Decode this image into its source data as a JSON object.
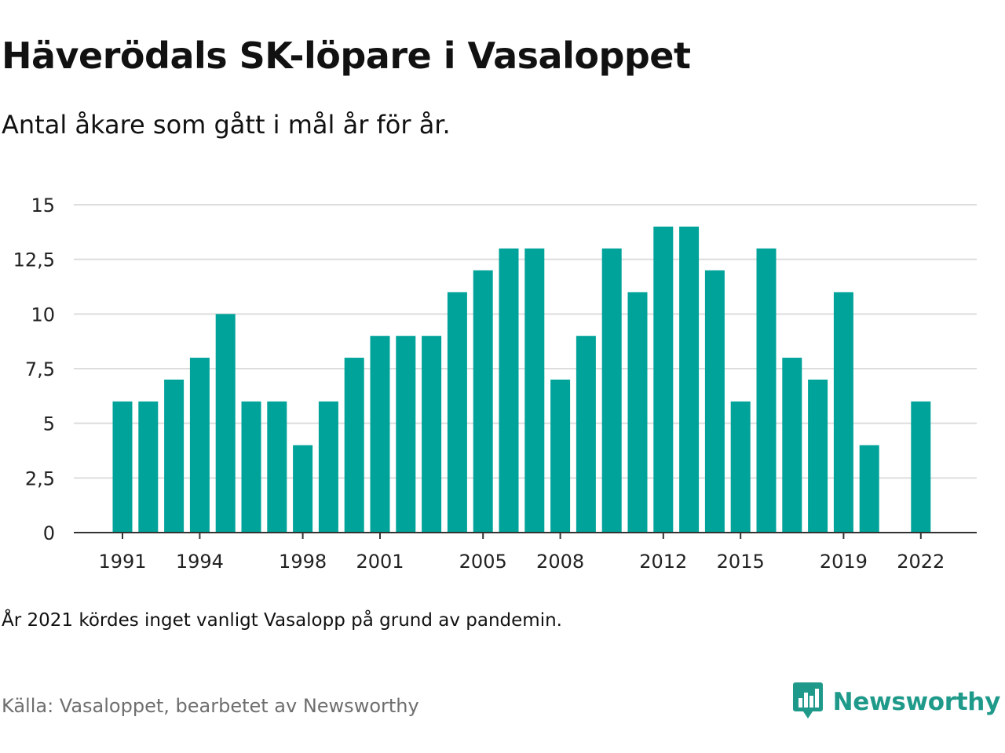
{
  "title": "Häverödals SK-löpare i Vasaloppet",
  "subtitle": "Antal åkare som gått i mål år för år.",
  "note": "År 2021 kördes inget vanligt Vasalopp på grund av pandemin.",
  "source": "Källa: Vasaloppet, bearbetet av Newsworthy",
  "brand": {
    "name": "Newsworthy",
    "icon": "newsworthy-logo-icon",
    "color": "#1f9a8a"
  },
  "chart_data": {
    "type": "bar",
    "categories": [
      "1991",
      "1992",
      "1993",
      "1994",
      "1995",
      "1996",
      "1997",
      "1998",
      "1999",
      "2000",
      "2001",
      "2002",
      "2003",
      "2004",
      "2005",
      "2006",
      "2007",
      "2008",
      "2009",
      "2010",
      "2011",
      "2012",
      "2013",
      "2014",
      "2015",
      "2016",
      "2017",
      "2018",
      "2019",
      "2020",
      "2021",
      "2022"
    ],
    "values": [
      6,
      6,
      7,
      8,
      10,
      6,
      6,
      4,
      6,
      8,
      9,
      9,
      9,
      11,
      12,
      13,
      13,
      7,
      9,
      13,
      11,
      14,
      14,
      12,
      6,
      13,
      8,
      7,
      11,
      4,
      null,
      6
    ],
    "x_tick_labels": [
      "1991",
      "1994",
      "1998",
      "2001",
      "2005",
      "2008",
      "2012",
      "2015",
      "2019",
      "2022"
    ],
    "y_ticks": [
      0,
      2.5,
      5,
      7.5,
      10,
      12.5,
      15
    ],
    "y_tick_labels": [
      "0",
      "2,5",
      "5",
      "7,5",
      "10",
      "12,5",
      "15"
    ],
    "ylim": [
      0,
      15
    ],
    "grid": true,
    "bar_color": "#00a39a",
    "grid_color": "#dddddd",
    "axis_color": "#333333"
  }
}
